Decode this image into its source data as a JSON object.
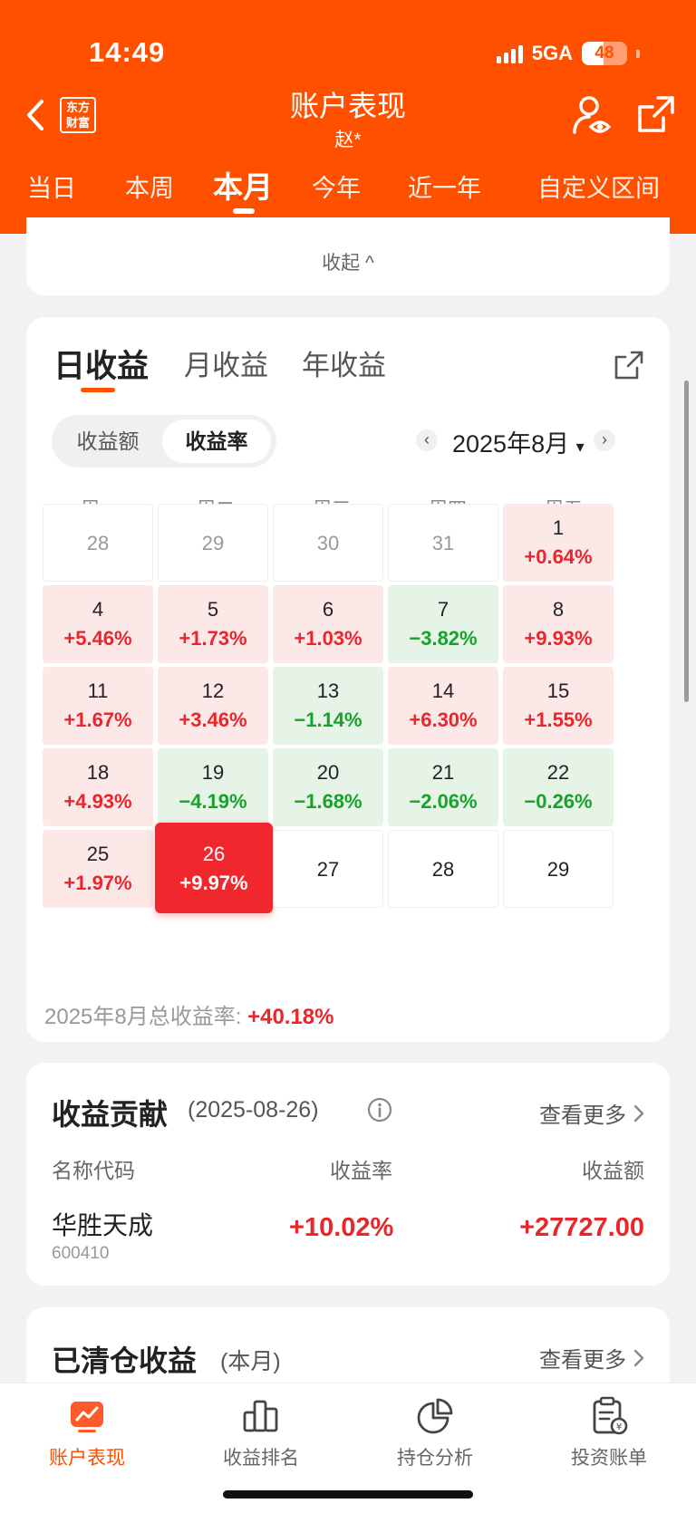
{
  "status_bar": {
    "time": "14:49",
    "network": "5GA",
    "battery": "48"
  },
  "header": {
    "brand": "东方财富",
    "title": "账户表现",
    "subtitle": "赵*"
  },
  "range_tabs": [
    "当日",
    "本周",
    "本月",
    "今年",
    "近一年",
    "自定义区间"
  ],
  "range_active": "本月",
  "collapse_label": "收起 ^",
  "returns": {
    "tabs": [
      "日收益",
      "月收益",
      "年收益"
    ],
    "active_tab": "日收益",
    "toggle": [
      "收益额",
      "收益率"
    ],
    "toggle_active": "收益率",
    "month": "2025年8月",
    "month_caret": "▾",
    "prev": "‹",
    "next": "›",
    "weekdays": [
      "周一",
      "周二",
      "周三",
      "周四",
      "周五"
    ],
    "weeks": [
      [
        {
          "day": "28",
          "pct": "",
          "state": "gray"
        },
        {
          "day": "29",
          "pct": "",
          "state": "gray"
        },
        {
          "day": "30",
          "pct": "",
          "state": "gray"
        },
        {
          "day": "31",
          "pct": "",
          "state": "gray"
        },
        {
          "day": "1",
          "pct": "+0.64%",
          "state": "up"
        }
      ],
      [
        {
          "day": "4",
          "pct": "+5.46%",
          "state": "up"
        },
        {
          "day": "5",
          "pct": "+1.73%",
          "state": "up"
        },
        {
          "day": "6",
          "pct": "+1.03%",
          "state": "up"
        },
        {
          "day": "7",
          "pct": "−3.82%",
          "state": "down"
        },
        {
          "day": "8",
          "pct": "+9.93%",
          "state": "up"
        }
      ],
      [
        {
          "day": "11",
          "pct": "+1.67%",
          "state": "up"
        },
        {
          "day": "12",
          "pct": "+3.46%",
          "state": "up"
        },
        {
          "day": "13",
          "pct": "−1.14%",
          "state": "down"
        },
        {
          "day": "14",
          "pct": "+6.30%",
          "state": "up"
        },
        {
          "day": "15",
          "pct": "+1.55%",
          "state": "up"
        }
      ],
      [
        {
          "day": "18",
          "pct": "+4.93%",
          "state": "up"
        },
        {
          "day": "19",
          "pct": "−4.19%",
          "state": "down"
        },
        {
          "day": "20",
          "pct": "−1.68%",
          "state": "down"
        },
        {
          "day": "21",
          "pct": "−2.06%",
          "state": "down"
        },
        {
          "day": "22",
          "pct": "−0.26%",
          "state": "down"
        }
      ],
      [
        {
          "day": "25",
          "pct": "+1.97%",
          "state": "up"
        },
        {
          "day": "26",
          "pct": "+9.97%",
          "state": "hl"
        },
        {
          "day": "27",
          "pct": "",
          "state": "future"
        },
        {
          "day": "28",
          "pct": "",
          "state": "future"
        },
        {
          "day": "29",
          "pct": "",
          "state": "future"
        }
      ]
    ],
    "total_label": "2025年8月总收益率:",
    "total_value": "+40.18%"
  },
  "contribution": {
    "title": "收益贡献",
    "date": "(2025-08-26)",
    "more": "查看更多",
    "columns": [
      "名称代码",
      "收益率",
      "收益额"
    ],
    "row": {
      "name": "华胜天成",
      "code": "600410",
      "rate": "+10.02%",
      "amount": "+27727.00"
    }
  },
  "closed": {
    "title": "已清仓收益",
    "sub": "(本月)",
    "more": "查看更多"
  },
  "bottom_nav": [
    {
      "label": "账户表现",
      "icon": "chart-icon"
    },
    {
      "label": "收益排名",
      "icon": "ranking-icon"
    },
    {
      "label": "持仓分析",
      "icon": "pie-icon"
    },
    {
      "label": "投资账单",
      "icon": "bill-icon"
    }
  ],
  "colors": {
    "brand": "#ff5000",
    "up": "#e8262b",
    "down": "#17a32b"
  }
}
